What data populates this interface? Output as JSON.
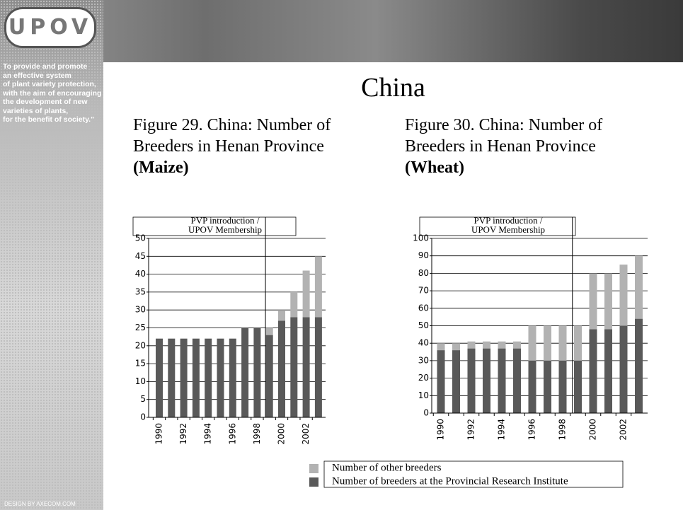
{
  "header": {
    "logo": "UPOV",
    "motto": [
      "To provide and promote",
      "an effective system",
      "of plant variety protection,",
      "with the aim of encouraging",
      "the development of new",
      "varieties of plants,",
      "for the benefit of society.\""
    ],
    "credit": "DESIGN BY AXECOM.COM"
  },
  "title": "China",
  "captions": [
    {
      "text": "Figure 29. China: Number of Breeders in Henan Province",
      "crop": "(Maize)"
    },
    {
      "text": "Figure 30. China: Number of Breeders in Henan Province",
      "crop": "(Wheat)"
    }
  ],
  "chart_data": [
    {
      "type": "stacked_bar",
      "annotation": [
        "PVP introduction /",
        "UPOV Membership"
      ],
      "categories": [
        "1990",
        null,
        "1992",
        null,
        "1994",
        null,
        "1996",
        null,
        "1998",
        null,
        "2000",
        null,
        "2002",
        null
      ],
      "series": [
        {
          "name": "Number of breeders at the Provincial Research Institute",
          "color": "#595959",
          "values": [
            22,
            22,
            22,
            22,
            22,
            22,
            22,
            25,
            25,
            23,
            27,
            28,
            28,
            28
          ]
        },
        {
          "name": "Number of other breeders",
          "color": "#b2b2b2",
          "values": [
            0,
            0,
            0,
            0,
            0,
            0,
            0,
            0,
            0,
            2,
            3,
            7,
            13,
            17
          ]
        }
      ],
      "ylim": [
        0,
        50
      ],
      "yticks": [
        0,
        5,
        10,
        15,
        20,
        25,
        30,
        35,
        40,
        45,
        50
      ],
      "grid": true
    },
    {
      "type": "stacked_bar",
      "annotation": [
        "PVP introduction /",
        "UPOV Membership"
      ],
      "categories": [
        "1990",
        null,
        "1992",
        null,
        "1994",
        null,
        "1996",
        null,
        "1998",
        null,
        "2000",
        null,
        "2002",
        null
      ],
      "series": [
        {
          "color": "#595959",
          "values": [
            36,
            36,
            37,
            37,
            37,
            37,
            30,
            30,
            30,
            30,
            48,
            48,
            50,
            54
          ]
        },
        {
          "color": "#b2b2b2",
          "values": [
            4,
            4,
            4,
            4,
            4,
            4,
            20,
            20,
            20,
            20,
            32,
            32,
            35,
            36
          ]
        }
      ],
      "ylim": [
        0,
        100
      ],
      "yticks": [
        0,
        10,
        20,
        30,
        40,
        50,
        60,
        70,
        80,
        90,
        100
      ],
      "grid": true
    }
  ]
}
